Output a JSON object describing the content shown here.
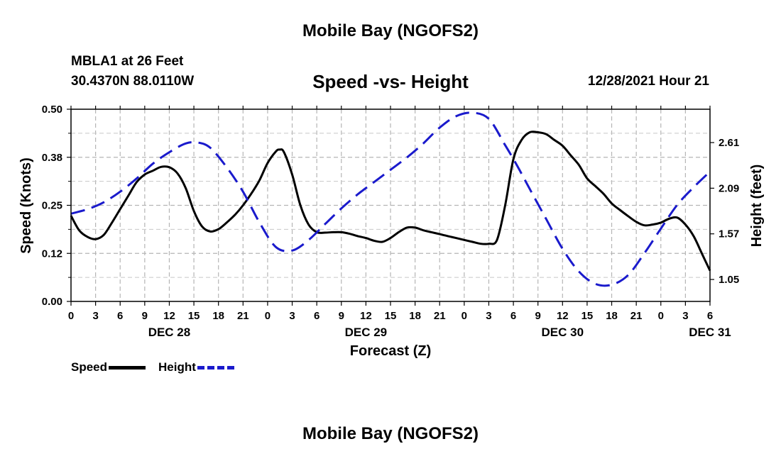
{
  "header": {
    "title": "Mobile Bay (NGOFS2)",
    "station": "MBLA1 at 26 Feet",
    "coords": "30.4370N  88.0110W",
    "subtitle": "Speed -vs- Height",
    "datestamp": "12/28/2021 Hour 21"
  },
  "footer": {
    "title": "Mobile Bay (NGOFS2)"
  },
  "legend": {
    "speed_label": "Speed",
    "height_label": "Height",
    "speed_color": "#000000",
    "height_color": "#1a1acc"
  },
  "chart_data": {
    "type": "line",
    "xlabel": "Forecast (Z)",
    "ylabel_left": "Speed (Knots)",
    "ylabel_right": "Height (feet)",
    "x_tick_labels": [
      "0",
      "3",
      "6",
      "9",
      "12",
      "15",
      "18",
      "21",
      "0",
      "3",
      "6",
      "9",
      "12",
      "15",
      "18",
      "21",
      "0",
      "3",
      "6",
      "9",
      "12",
      "15",
      "18",
      "21",
      "0",
      "3",
      "6"
    ],
    "date_labels": [
      {
        "hour": 12,
        "label": "DEC 28"
      },
      {
        "hour": 36,
        "label": "DEC 29"
      },
      {
        "hour": 60,
        "label": "DEC 30"
      },
      {
        "hour": 78,
        "label": "DEC 31"
      }
    ],
    "xlim": [
      0,
      78
    ],
    "ylim_left": [
      0,
      0.5
    ],
    "ylim_right": [
      0.8,
      2.99
    ],
    "left_ticks": [
      {
        "value": 0.0,
        "label": "0.00"
      },
      {
        "value": 0.125,
        "label": "0.12"
      },
      {
        "value": 0.25,
        "label": "0.25"
      },
      {
        "value": 0.375,
        "label": "0.38"
      },
      {
        "value": 0.5,
        "label": "0.50"
      }
    ],
    "right_ticks": [
      {
        "value": 1.05,
        "label": "1.05"
      },
      {
        "value": 1.57,
        "label": "1.57"
      },
      {
        "value": 2.09,
        "label": "2.09"
      },
      {
        "value": 2.61,
        "label": "2.61"
      }
    ],
    "series": [
      {
        "name": "Speed",
        "axis": "left",
        "style": "solid",
        "color": "#000000",
        "x": [
          0,
          1,
          2,
          3,
          4,
          5,
          6,
          7,
          8,
          9,
          10,
          11,
          12,
          13,
          14,
          15,
          16,
          17,
          18,
          19,
          20,
          21,
          22,
          23,
          24,
          25,
          25.5,
          26,
          27,
          28,
          29,
          30,
          31,
          32,
          33,
          34,
          35,
          36,
          37,
          38,
          39,
          40,
          41,
          42,
          43,
          44,
          45,
          46,
          47,
          48,
          49,
          50,
          51,
          52,
          53,
          54,
          55,
          56,
          57,
          58,
          59,
          60,
          61,
          62,
          63,
          64,
          65,
          66,
          67,
          68,
          69,
          70,
          71,
          72,
          73,
          74,
          75,
          76,
          77,
          78
        ],
        "values": [
          0.223,
          0.185,
          0.168,
          0.162,
          0.173,
          0.205,
          0.24,
          0.275,
          0.31,
          0.33,
          0.34,
          0.35,
          0.349,
          0.333,
          0.295,
          0.235,
          0.195,
          0.182,
          0.188,
          0.205,
          0.225,
          0.25,
          0.28,
          0.315,
          0.36,
          0.39,
          0.395,
          0.388,
          0.33,
          0.25,
          0.2,
          0.18,
          0.179,
          0.18,
          0.18,
          0.176,
          0.17,
          0.165,
          0.158,
          0.155,
          0.165,
          0.18,
          0.192,
          0.192,
          0.185,
          0.18,
          0.175,
          0.17,
          0.165,
          0.16,
          0.155,
          0.15,
          0.15,
          0.16,
          0.25,
          0.37,
          0.42,
          0.44,
          0.44,
          0.435,
          0.42,
          0.405,
          0.38,
          0.355,
          0.32,
          0.3,
          0.28,
          0.255,
          0.238,
          0.222,
          0.207,
          0.198,
          0.2,
          0.205,
          0.215,
          0.218,
          0.2,
          0.17,
          0.125,
          0.08
        ]
      },
      {
        "name": "Height",
        "axis": "right",
        "style": "dashed",
        "color": "#1a1acc",
        "x": [
          0,
          2,
          4,
          6,
          8,
          10,
          12,
          14,
          15.5,
          17,
          19,
          21,
          23,
          25,
          27,
          29,
          31,
          33,
          35,
          37,
          39,
          41,
          43,
          45,
          47,
          49,
          51,
          53,
          54.5,
          56,
          58,
          60,
          62,
          64,
          66,
          68,
          70,
          72,
          74,
          76,
          78
        ],
        "values": [
          1.8,
          1.85,
          1.93,
          2.05,
          2.2,
          2.37,
          2.5,
          2.6,
          2.61,
          2.55,
          2.33,
          2.05,
          1.7,
          1.42,
          1.38,
          1.5,
          1.68,
          1.86,
          2.02,
          2.16,
          2.3,
          2.44,
          2.6,
          2.78,
          2.91,
          2.95,
          2.88,
          2.58,
          2.34,
          2.08,
          1.74,
          1.4,
          1.14,
          1.0,
          0.99,
          1.1,
          1.35,
          1.63,
          1.9,
          2.1,
          2.28
        ]
      }
    ]
  }
}
